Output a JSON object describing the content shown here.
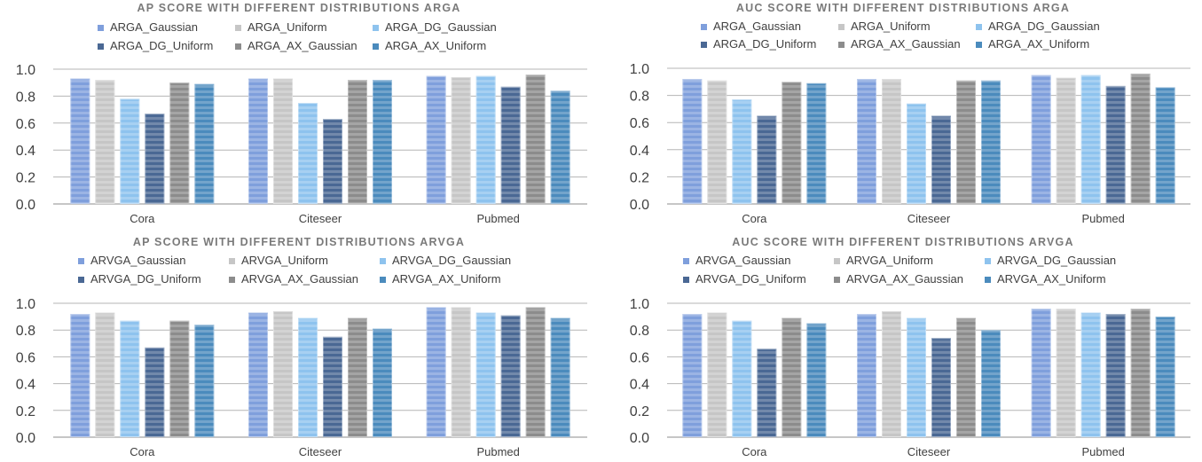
{
  "palette": {
    "Gaussian": "#7f9fdc",
    "Uniform": "#c6c6c6",
    "DG_Gaussian": "#8ec3ee",
    "DG_Uniform": "#4a6894",
    "AX_Gaussian": "#8c8c8c",
    "AX_Uniform": "#4b8bbd"
  },
  "chart_data": [
    {
      "type": "bar",
      "title": "AP SCORE WITH DIFFERENT DISTRIBUTIONS ARGA",
      "categories": [
        "Cora",
        "Citeseer",
        "Pubmed"
      ],
      "ylim": [
        0,
        1.0
      ],
      "yticks": [
        "0.0",
        "0.2",
        "0.4",
        "0.6",
        "0.8",
        "1.0"
      ],
      "grid": true,
      "legend": "top",
      "series": [
        {
          "name": "ARGA_Gaussian",
          "key": "Gaussian",
          "values": [
            0.93,
            0.93,
            0.95
          ]
        },
        {
          "name": "ARGA_Uniform",
          "key": "Uniform",
          "values": [
            0.92,
            0.93,
            0.94
          ]
        },
        {
          "name": "ARGA_DG_Gaussian",
          "key": "DG_Gaussian",
          "values": [
            0.78,
            0.75,
            0.95
          ]
        },
        {
          "name": "ARGA_DG_Uniform",
          "key": "DG_Uniform",
          "values": [
            0.67,
            0.63,
            0.87
          ]
        },
        {
          "name": "ARGA_AX_Gaussian",
          "key": "AX_Gaussian",
          "values": [
            0.9,
            0.92,
            0.96
          ]
        },
        {
          "name": "ARGA_AX_Uniform",
          "key": "AX_Uniform",
          "values": [
            0.89,
            0.92,
            0.84
          ]
        }
      ]
    },
    {
      "type": "bar",
      "title": "AUC SCORE WITH DIFFERENT DISTRIBUTIONS ARGA",
      "categories": [
        "Cora",
        "Citeseer",
        "Pubmed"
      ],
      "ylim": [
        0,
        1.0
      ],
      "yticks": [
        "0.0",
        "0.2",
        "0.4",
        "0.6",
        "0.8",
        "1.0"
      ],
      "grid": true,
      "legend": "top",
      "series": [
        {
          "name": "ARGA_Gaussian",
          "key": "Gaussian",
          "values": [
            0.92,
            0.92,
            0.95
          ]
        },
        {
          "name": "ARGA_Uniform",
          "key": "Uniform",
          "values": [
            0.91,
            0.92,
            0.93
          ]
        },
        {
          "name": "ARGA_DG_Gaussian",
          "key": "DG_Gaussian",
          "values": [
            0.77,
            0.74,
            0.95
          ]
        },
        {
          "name": "ARGA_DG_Uniform",
          "key": "DG_Uniform",
          "values": [
            0.65,
            0.65,
            0.87
          ]
        },
        {
          "name": "ARGA_AX_Gaussian",
          "key": "AX_Gaussian",
          "values": [
            0.9,
            0.91,
            0.96
          ]
        },
        {
          "name": "ARGA_AX_Uniform",
          "key": "AX_Uniform",
          "values": [
            0.89,
            0.91,
            0.86
          ]
        }
      ]
    },
    {
      "type": "bar",
      "title": "AP SCORE WITH DIFFERENT DISTRIBUTIONS ARVGA",
      "categories": [
        "Cora",
        "Citeseer",
        "Pubmed"
      ],
      "ylim": [
        0,
        1.0
      ],
      "yticks": [
        "0.0",
        "0.2",
        "0.4",
        "0.6",
        "0.8",
        "1.0"
      ],
      "grid": true,
      "legend": "top",
      "series": [
        {
          "name": "ARVGA_Gaussian",
          "key": "Gaussian",
          "values": [
            0.92,
            0.93,
            0.97
          ]
        },
        {
          "name": "ARVGA_Uniform",
          "key": "Uniform",
          "values": [
            0.93,
            0.94,
            0.97
          ]
        },
        {
          "name": "ARVGA_DG_Gaussian",
          "key": "DG_Gaussian",
          "values": [
            0.87,
            0.89,
            0.93
          ]
        },
        {
          "name": "ARVGA_DG_Uniform",
          "key": "DG_Uniform",
          "values": [
            0.67,
            0.75,
            0.91
          ]
        },
        {
          "name": "ARVGA_AX_Gaussian",
          "key": "AX_Gaussian",
          "values": [
            0.87,
            0.89,
            0.97
          ]
        },
        {
          "name": "ARVGA_AX_Uniform",
          "key": "AX_Uniform",
          "values": [
            0.84,
            0.81,
            0.89
          ]
        }
      ]
    },
    {
      "type": "bar",
      "title": "AUC SCORE WITH DIFFERENT DISTRIBUTIONS ARVGA",
      "categories": [
        "Cora",
        "Citeseer",
        "Pubmed"
      ],
      "ylim": [
        0,
        1.0
      ],
      "yticks": [
        "0.0",
        "0.2",
        "0.4",
        "0.6",
        "0.8",
        "1.0"
      ],
      "grid": true,
      "legend": "top",
      "series": [
        {
          "name": "ARVGA_Gaussian",
          "key": "Gaussian",
          "values": [
            0.92,
            0.92,
            0.96
          ]
        },
        {
          "name": "ARVGA_Uniform",
          "key": "Uniform",
          "values": [
            0.93,
            0.94,
            0.96
          ]
        },
        {
          "name": "ARVGA_DG_Gaussian",
          "key": "DG_Gaussian",
          "values": [
            0.87,
            0.89,
            0.93
          ]
        },
        {
          "name": "ARVGA_DG_Uniform",
          "key": "DG_Uniform",
          "values": [
            0.66,
            0.74,
            0.92
          ]
        },
        {
          "name": "ARVGA_AX_Gaussian",
          "key": "AX_Gaussian",
          "values": [
            0.89,
            0.89,
            0.96
          ]
        },
        {
          "name": "ARVGA_AX_Uniform",
          "key": "AX_Uniform",
          "values": [
            0.85,
            0.8,
            0.9
          ]
        }
      ]
    }
  ]
}
